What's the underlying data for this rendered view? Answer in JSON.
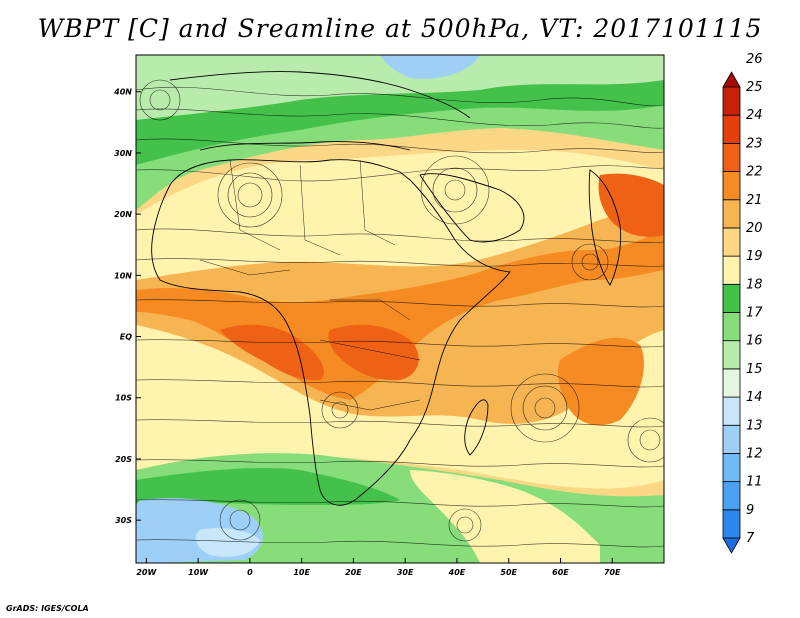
{
  "title": "WBPT [C] and Sreamline at 500hPa, VT: 2017101115",
  "credit": "GrADS: IGES/COLA",
  "map": {
    "lon_range": [
      -22,
      80
    ],
    "lat_range": [
      -37,
      46
    ],
    "lon_labels": [
      "20W",
      "10W",
      "0",
      "10E",
      "20E",
      "30E",
      "40E",
      "50E",
      "60E",
      "70E"
    ],
    "lon_values": [
      -20,
      -10,
      0,
      10,
      20,
      30,
      40,
      50,
      60,
      70
    ],
    "lat_labels": [
      "40N",
      "30N",
      "20N",
      "10N",
      "EQ",
      "10S",
      "20S",
      "30S"
    ],
    "lat_values": [
      40,
      30,
      20,
      10,
      0,
      -10,
      -20,
      -30
    ]
  },
  "colorbar": {
    "labels": [
      "7",
      "9",
      "11",
      "12",
      "13",
      "14",
      "15",
      "16",
      "17",
      "18",
      "19",
      "20",
      "21",
      "22",
      "23",
      "24",
      "25",
      "26"
    ],
    "colors": [
      "#1c6ee0",
      "#2d85f0",
      "#4aa0f2",
      "#6fb9f5",
      "#9ed0f7",
      "#c9e7fa",
      "#e6f7e0",
      "#b9ecac",
      "#86dd7a",
      "#43c14a",
      "#fff3ad",
      "#fbd786",
      "#f7b452",
      "#f58b22",
      "#ef6114",
      "#e33f0c",
      "#c8210a",
      "#a80b07"
    ]
  }
}
